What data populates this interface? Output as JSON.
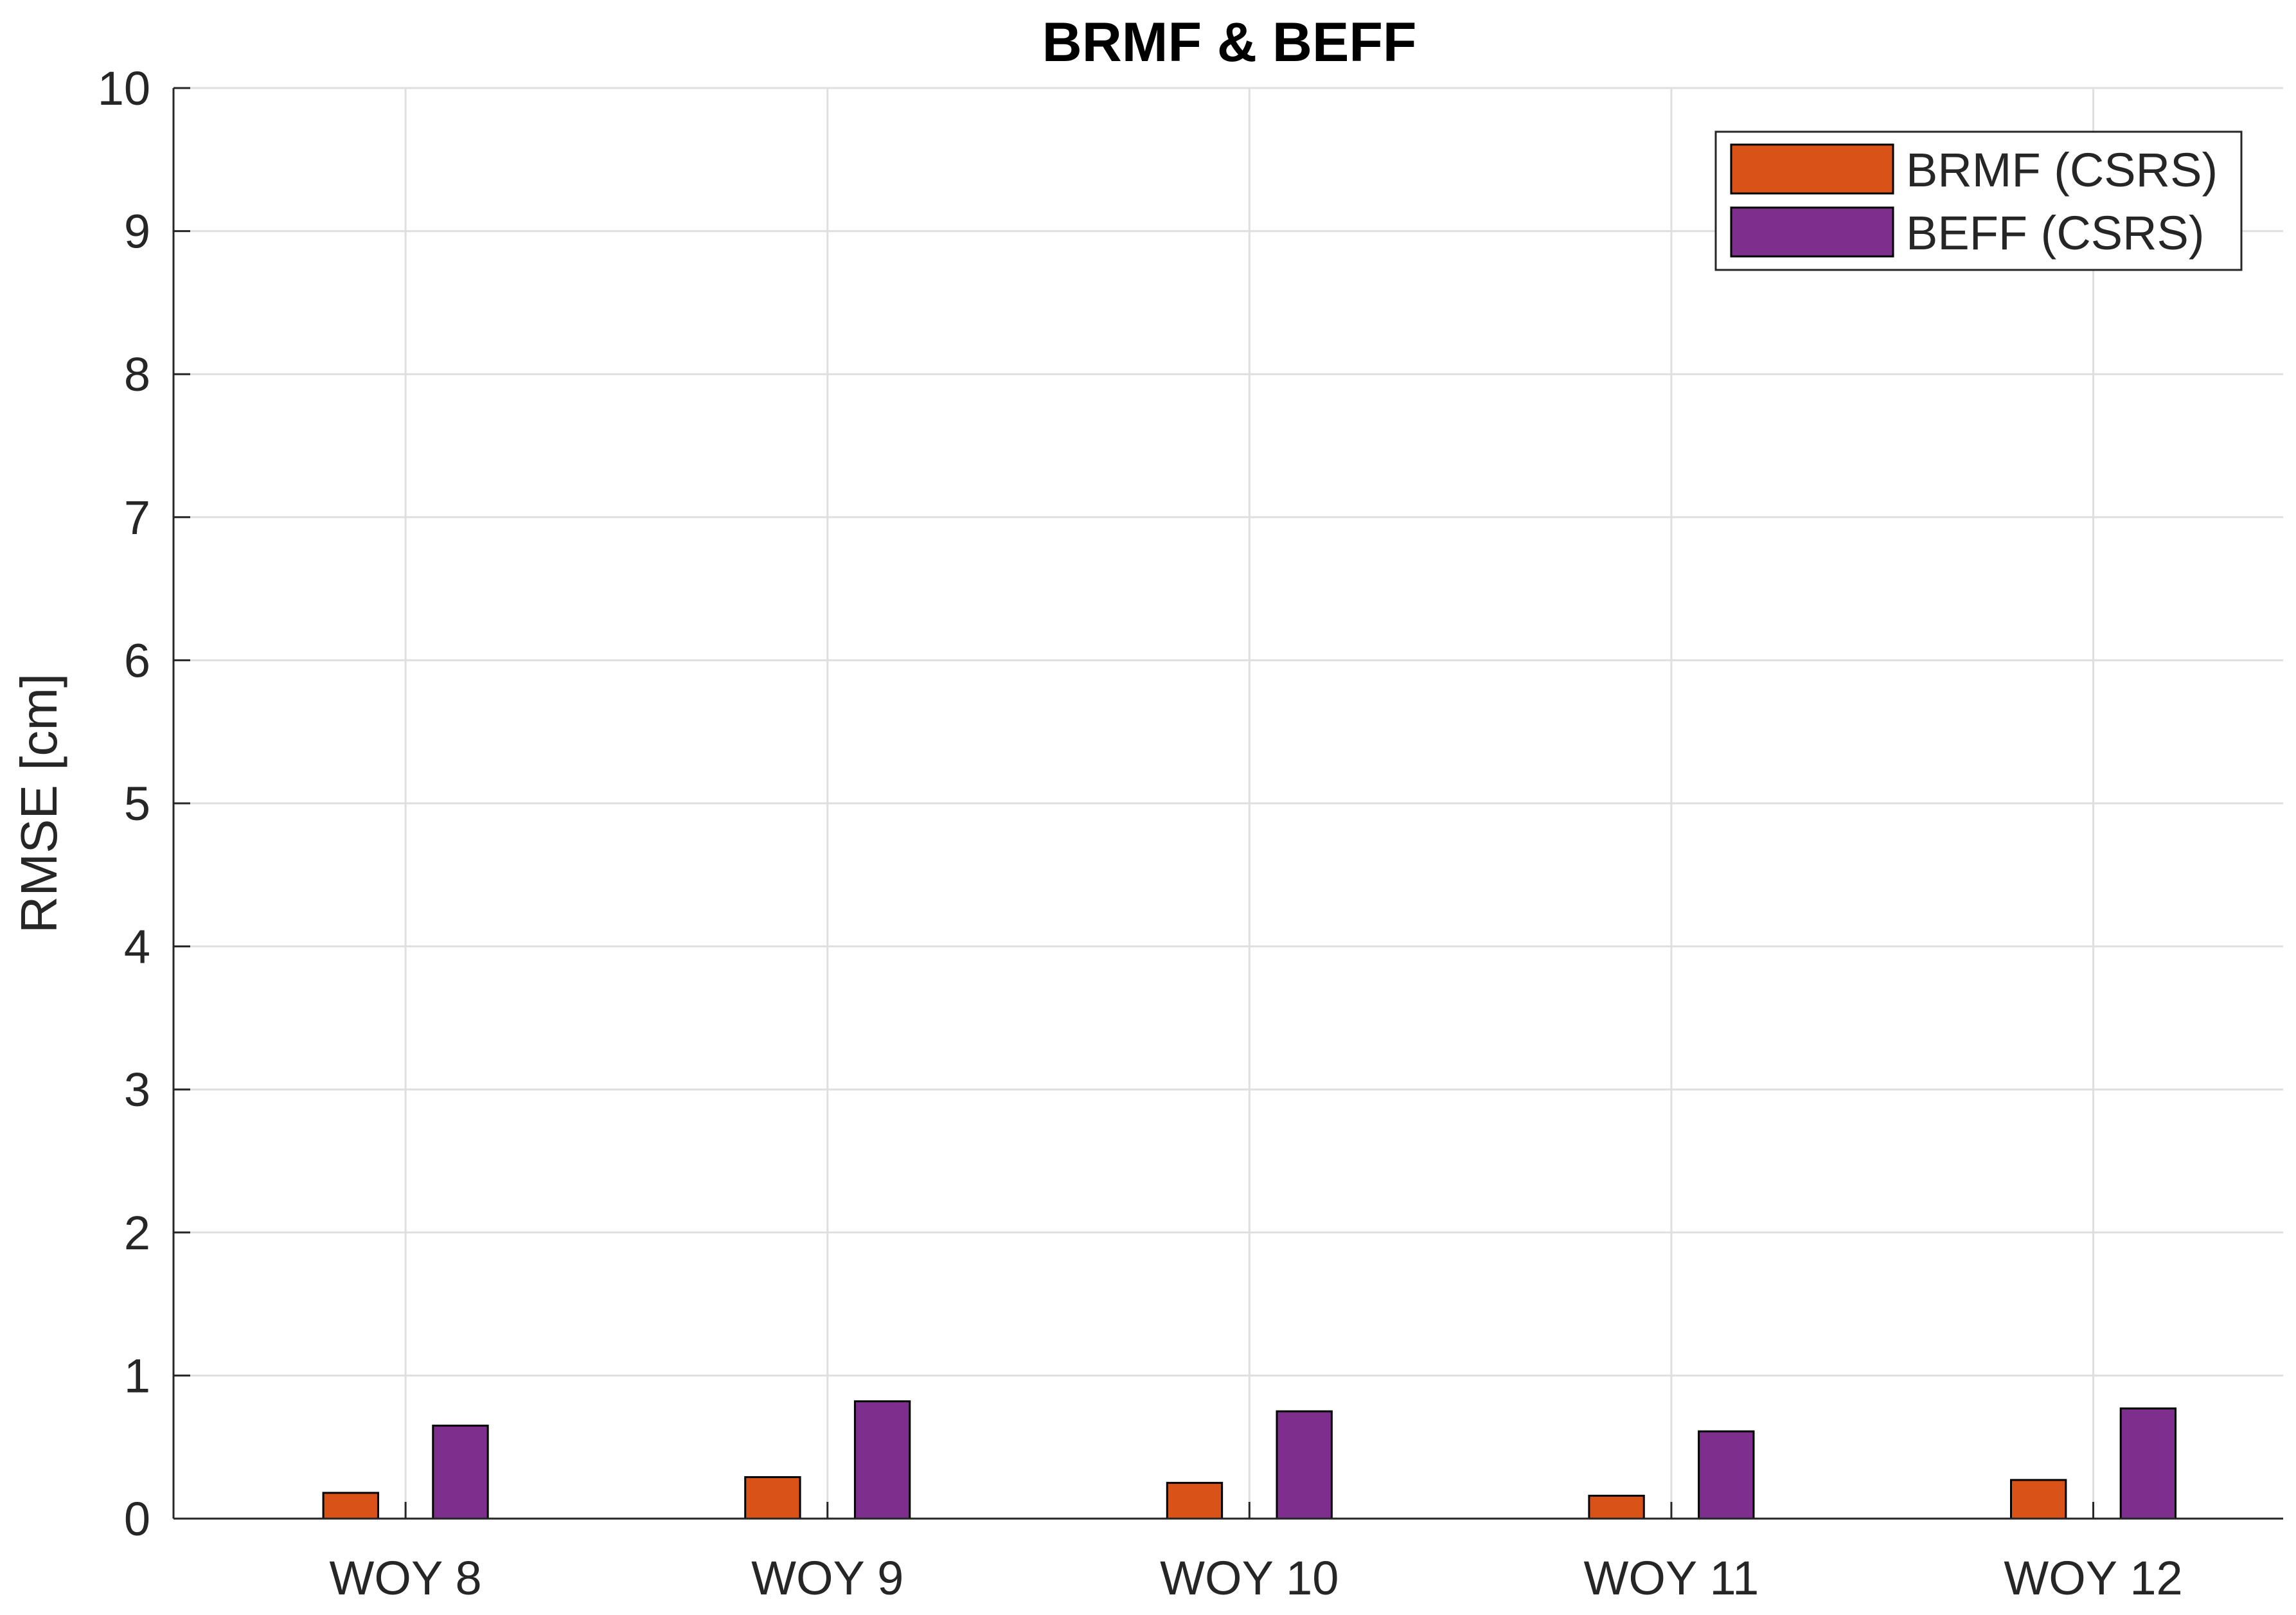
{
  "chart_data": {
    "type": "bar",
    "title": "BRMF & BEFF",
    "xlabel": "",
    "ylabel": "RMSE [cm]",
    "categories": [
      "WOY 8",
      "WOY 9",
      "WOY 10",
      "WOY 11",
      "WOY 12"
    ],
    "series": [
      {
        "name": "BRMF (CSRS)",
        "color": "#D95319",
        "values": [
          0.18,
          0.29,
          0.25,
          0.16,
          0.27
        ]
      },
      {
        "name": "BEFF (CSRS)",
        "color": "#7E2F8E",
        "values": [
          0.65,
          0.82,
          0.75,
          0.61,
          0.77
        ]
      }
    ],
    "ylim": [
      0,
      10
    ],
    "yticks": [
      "0",
      "1",
      "2",
      "3",
      "4",
      "5",
      "6",
      "7",
      "8",
      "9",
      "10"
    ],
    "grid": true,
    "legend_position": "top-right"
  }
}
